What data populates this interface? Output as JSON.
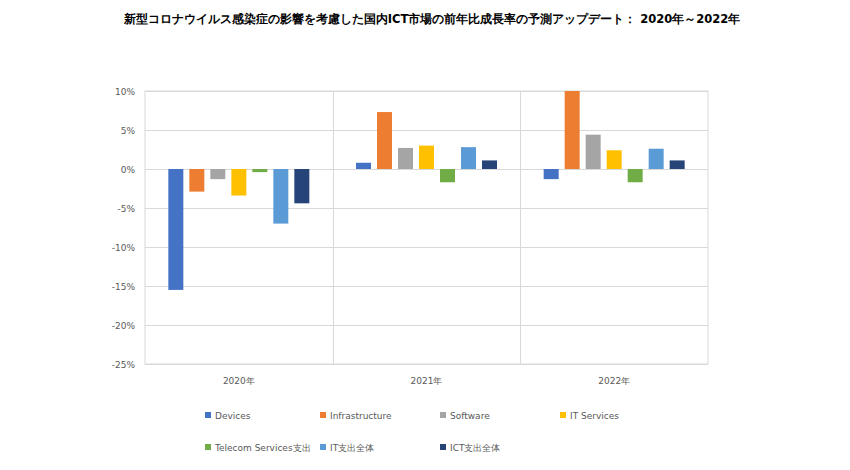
{
  "chart_data": {
    "type": "bar",
    "title": "新型コロナウイルス感染症の影響を考慮した国内ICT市場の前年比成長率の予測アップデート： 2020年～2022年",
    "categories": [
      "2020年",
      "2021年",
      "2022年"
    ],
    "series": [
      {
        "name": "Devices",
        "color": "#4472c4",
        "values": [
          -15.5,
          0.8,
          -1.3
        ]
      },
      {
        "name": "Infrastructure",
        "color": "#ed7d31",
        "values": [
          -2.9,
          7.3,
          10.0
        ]
      },
      {
        "name": "Software",
        "color": "#a5a5a5",
        "values": [
          -1.3,
          2.7,
          4.4
        ]
      },
      {
        "name": "IT Services",
        "color": "#ffc000",
        "values": [
          -3.4,
          3.0,
          2.4
        ]
      },
      {
        "name": "Telecom Services支出",
        "color": "#70ad47",
        "values": [
          -0.4,
          -1.7,
          -1.7
        ]
      },
      {
        "name": "IT支出全体",
        "color": "#5b9bd5",
        "values": [
          -7.0,
          2.8,
          2.6
        ]
      },
      {
        "name": "ICT支出全体",
        "color": "#264478",
        "values": [
          -4.4,
          1.1,
          1.1
        ]
      }
    ],
    "ylim": [
      -25,
      10
    ],
    "yticks": [
      {
        "value": 10,
        "label": "10%"
      },
      {
        "value": 5,
        "label": "5%"
      },
      {
        "value": 0,
        "label": "0%"
      },
      {
        "value": -5,
        "label": "-5%"
      },
      {
        "value": -10,
        "label": "-10%"
      },
      {
        "value": -15,
        "label": "-15%"
      },
      {
        "value": -20,
        "label": "-20%"
      },
      {
        "value": -25,
        "label": "-25%"
      }
    ],
    "grid": true,
    "legend": "bottom"
  }
}
